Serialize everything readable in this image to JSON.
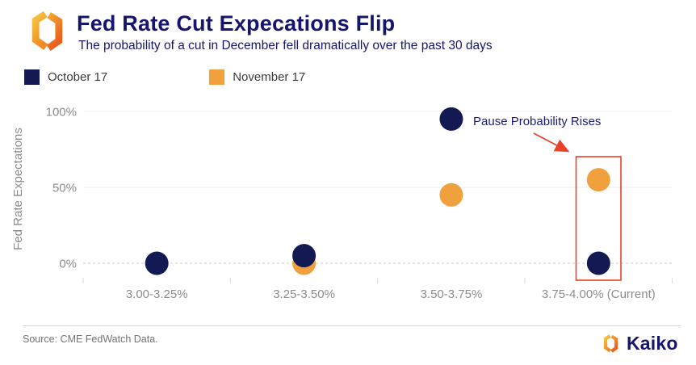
{
  "header": {
    "title": "Fed Rate Cut Expecations Flip",
    "subtitle": "The probability of a cut in December fell dramatically over the past 30 days"
  },
  "legend": {
    "items": [
      {
        "label": "October 17",
        "color": "#131a53"
      },
      {
        "label": "November 17",
        "color": "#f0a03c"
      }
    ]
  },
  "chart_data": {
    "type": "scatter",
    "title": "Fed Rate Cut Expecations Flip",
    "subtitle": "The probability of a cut in December fell dramatically over the past 30 days",
    "categories": [
      "3.00-3.25%",
      "3.25-3.50%",
      "3.50-3.75%",
      "3.75-4.00% (Current)"
    ],
    "series": [
      {
        "name": "October 17",
        "color": "#131a53",
        "values": [
          0,
          5,
          95,
          0
        ]
      },
      {
        "name": "November 17",
        "color": "#f0a03c",
        "values": [
          null,
          0,
          45,
          55
        ]
      }
    ],
    "xlabel": "",
    "ylabel": "Fed Rate Expectations",
    "ylim": [
      0,
      100
    ],
    "yticks": [
      {
        "label": "100%",
        "value": 100
      },
      {
        "label": "50%",
        "value": 50
      },
      {
        "label": "0%",
        "value": 0
      }
    ],
    "grid": true,
    "legend_position": "top-left",
    "annotation": {
      "text": "Pause Probability Rises",
      "text_color": "#1c1c77",
      "arrow_color": "#e8432a"
    },
    "highlight": {
      "category": "3.75-4.00% (Current)",
      "box_color": "#e8432a"
    }
  },
  "colors": {
    "axis_text": "#8c8c8c",
    "grid_solid": "#ececec",
    "grid_dashed": "#c9c9c9",
    "tick": "#dddddd"
  },
  "footer": {
    "source": "Source: CME FedWatch Data.",
    "brand": "Kaiko"
  }
}
